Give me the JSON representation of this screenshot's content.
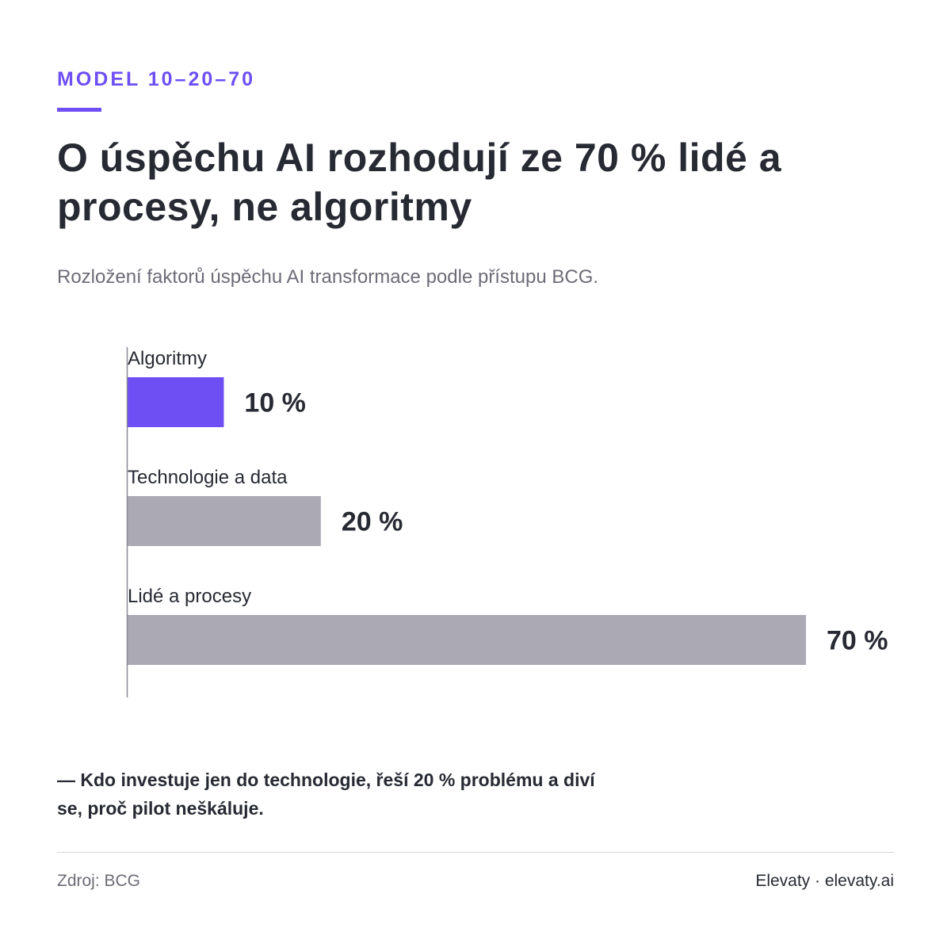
{
  "header": {
    "kicker": "MODEL 10–20–70",
    "title": "O úspěchu AI rozhodují ze 70 % lidé a procesy, ne algoritmy",
    "subtitle": "Rozložení faktorů úspěchu AI transformace podle přístupu BCG."
  },
  "chart_data": {
    "type": "bar",
    "orientation": "horizontal",
    "categories": [
      "Algoritmy",
      "Technologie a data",
      "Lidé a procesy"
    ],
    "values": [
      10,
      20,
      70
    ],
    "value_labels": [
      "10 %",
      "20 %",
      "70 %"
    ],
    "unit": "%",
    "xlim": [
      0,
      70
    ],
    "grid": false,
    "legend": "none",
    "colors": [
      "#6e4ff4",
      "#abaab4",
      "#abaab4"
    ]
  },
  "note": {
    "text": "— Kdo investuje jen do technologie, řeší 20 % problému a diví se, proč pilot neškáluje."
  },
  "footer": {
    "source": "Zdroj: BCG",
    "brand": "Elevaty · elevaty.ai"
  },
  "colors": {
    "accent": "#6e4ff4",
    "bar_neutral": "#abaab4",
    "text_dark": "#272a33",
    "text_muted": "#6d6b77"
  }
}
